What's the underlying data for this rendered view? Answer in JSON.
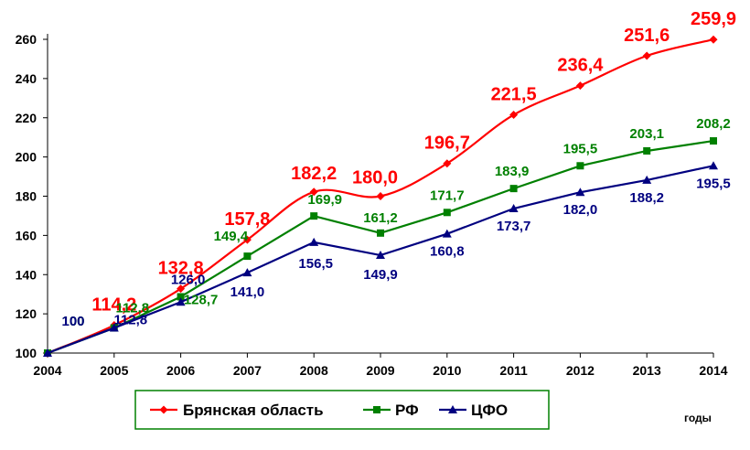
{
  "chart_data": {
    "type": "line",
    "x": [
      "2004",
      "2005",
      "2006",
      "2007",
      "2008",
      "2009",
      "2010",
      "2011",
      "2012",
      "2013",
      "2014"
    ],
    "ylim": [
      100,
      260
    ],
    "yticks": [
      100,
      120,
      140,
      160,
      180,
      200,
      220,
      240,
      260
    ],
    "xlabel": "годы",
    "grid": false,
    "legend": "bottom-center",
    "series": [
      {
        "name": "Брянская область",
        "color": "#ff0000",
        "marker": "diamond",
        "values": [
          100,
          114.2,
          132.8,
          157.8,
          182.2,
          180.0,
          196.7,
          221.5,
          236.4,
          251.6,
          259.9
        ],
        "labels": [
          "",
          "114,2",
          "132,8",
          "157,8",
          "182,2",
          "180,0",
          "196,7",
          "221,5",
          "236,4",
          "251,6",
          "259,9"
        ]
      },
      {
        "name": "РФ",
        "color": "#008000",
        "marker": "square",
        "values": [
          100,
          112.8,
          128.7,
          149.4,
          169.9,
          161.2,
          171.7,
          183.9,
          195.5,
          203.1,
          208.2
        ],
        "labels": [
          "100",
          "112,8",
          "128,7",
          "149,4",
          "169,9",
          "161,2",
          "171,7",
          "183,9",
          "195,5",
          "203,1",
          "208,2"
        ]
      },
      {
        "name": "ЦФО",
        "color": "#000080",
        "marker": "triangle",
        "values": [
          100,
          112.8,
          126.0,
          141.0,
          156.5,
          149.9,
          160.8,
          173.7,
          182.0,
          188.2,
          195.5
        ],
        "labels": [
          "100",
          "112,8",
          "126,0",
          "141,0",
          "156,5",
          "149,9",
          "160,8",
          "173,7",
          "182,0",
          "188,2",
          "195,5"
        ]
      }
    ]
  }
}
